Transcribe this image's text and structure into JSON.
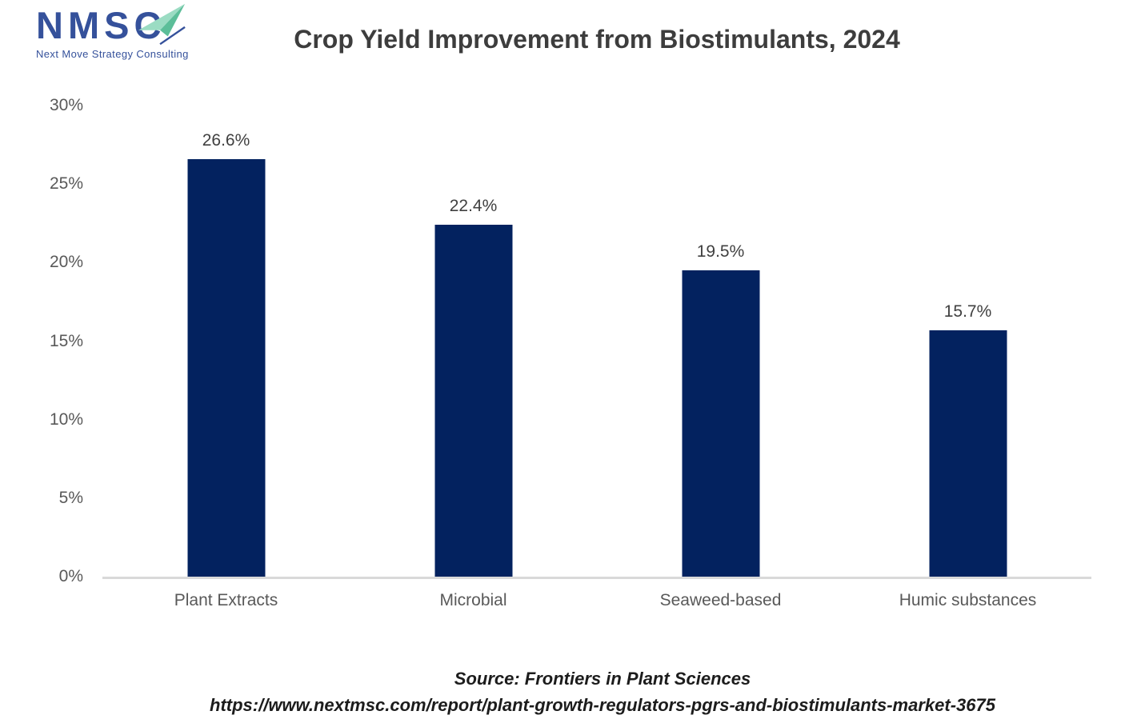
{
  "logo": {
    "brand": "NMSC",
    "tagline": "Next Move Strategy Consulting",
    "brand_color": "#35519B",
    "arrow_icon_colors": {
      "light": "#9BDCC3",
      "dark": "#5CBE99"
    }
  },
  "header": {
    "title": "Crop Yield Improvement from Biostimulants, 2024"
  },
  "chart_data": {
    "type": "bar",
    "title": "Crop Yield Improvement from Biostimulants, 2024",
    "categories": [
      "Plant Extracts",
      "Microbial",
      "Seaweed-based",
      "Humic substances"
    ],
    "values": [
      26.6,
      22.4,
      19.5,
      15.7
    ],
    "value_labels": [
      "26.6%",
      "22.4%",
      "19.5%",
      "15.7%"
    ],
    "xlabel": "",
    "ylabel": "",
    "ylim": [
      0,
      30
    ],
    "yticks": [
      {
        "value": 30,
        "label": "30%"
      },
      {
        "value": 25,
        "label": "25%"
      },
      {
        "value": 20,
        "label": "20%"
      },
      {
        "value": 15,
        "label": "15%"
      },
      {
        "value": 10,
        "label": "10%"
      },
      {
        "value": 5,
        "label": "5%"
      },
      {
        "value": 0,
        "label": "0%"
      }
    ],
    "bar_color": "#03225F",
    "axis_line_color": "#D9D9D9",
    "grid": false,
    "legend": false
  },
  "footer": {
    "source_line": "Source: Frontiers in Plant Sciences",
    "url_line": "https://www.nextmsc.com/report/plant-growth-regulators-pgrs-and-biostimulants-market-3675"
  }
}
